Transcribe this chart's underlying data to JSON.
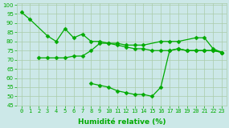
{
  "background_color": "#cce8e8",
  "grid_color": "#aaccaa",
  "line_color": "#00aa00",
  "marker": "D",
  "markersize": 2.5,
  "linewidth": 0.9,
  "ylim": [
    45,
    101
  ],
  "yticks": [
    45,
    50,
    55,
    60,
    65,
    70,
    75,
    80,
    85,
    90,
    95,
    100
  ],
  "xlim": [
    -0.5,
    23.5
  ],
  "xlabel": "Humidité relative (%)",
  "xlabel_color": "#00aa00",
  "tick_color": "#00aa00",
  "tick_fontsize": 5.0,
  "xlabel_fontsize": 6.5,
  "line_a_x": [
    0,
    1,
    3,
    4,
    5,
    6,
    7,
    8,
    9,
    10,
    11,
    12,
    13,
    14,
    16,
    17,
    18,
    20,
    21,
    22,
    23
  ],
  "line_a_y": [
    96,
    92,
    83,
    80,
    87,
    82,
    84,
    80,
    80,
    79,
    79,
    78,
    78,
    78,
    80,
    80,
    80,
    82,
    82,
    76,
    74
  ],
  "line_b_x": [
    2,
    3,
    4,
    5,
    6,
    7,
    8,
    9,
    10,
    11,
    12,
    13,
    14,
    15,
    16,
    17,
    18,
    19,
    20,
    21,
    22,
    23
  ],
  "line_b_y": [
    71,
    71,
    71,
    71,
    72,
    72,
    75,
    79,
    79,
    78,
    77,
    76,
    76,
    75,
    75,
    75,
    76,
    75,
    75,
    75,
    75,
    74
  ],
  "line_c_x": [
    8,
    9,
    10,
    11,
    12,
    13,
    14,
    15,
    16,
    17,
    18,
    19,
    20,
    21,
    22,
    23
  ],
  "line_c_y": [
    57,
    56,
    55,
    53,
    52,
    51,
    51,
    50,
    55,
    75,
    76,
    75,
    75,
    75,
    75,
    74
  ]
}
